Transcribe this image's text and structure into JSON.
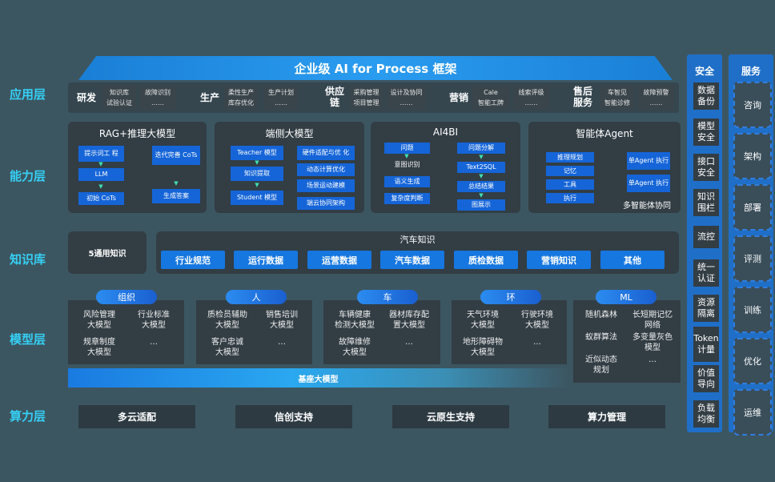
{
  "title": "企业级 AI for Process 框架",
  "layers": {
    "app": "应用层",
    "cap": "能力层",
    "kb": "知识库",
    "model": "模型层",
    "compute": "算力层"
  },
  "app": [
    {
      "name": "研发",
      "items": [
        "知识库\n试验认证",
        "故障识别\n……"
      ]
    },
    {
      "name": "生产",
      "items": [
        "柔性生产\n库存优化",
        "生产计划\n……"
      ]
    },
    {
      "name": "供应\n链",
      "items": [
        "采购管理\n项目管理",
        "设计及协同\n……"
      ]
    },
    {
      "name": "营销",
      "items": [
        "Cale\n智能工牌",
        "线索评级\n……"
      ]
    },
    {
      "name": "售后\n服务",
      "items": [
        "车智见\n智能诊修",
        "故障预警\n……"
      ]
    }
  ],
  "cap": {
    "rag": {
      "title": "RAG+推理大模型",
      "items": [
        "提示词工\n程",
        "LLM",
        "初始 CoTs",
        "迭代完善\nCoTs",
        "生成答案"
      ]
    },
    "edge": {
      "title": "端侧大模型",
      "items": [
        "Teacher 模型",
        "知识提取",
        "Student 模型",
        "硬件适配与优\n化",
        "动态计算优化",
        "场景运动建模",
        "端云协同架构"
      ]
    },
    "bi": {
      "title": "AI4BI",
      "items": [
        "问题",
        "意图识别",
        "语义生成",
        "复杂度判断",
        "问题分解",
        "Text2SQL",
        "总结结果",
        "图展示"
      ]
    },
    "agent": {
      "title": "智能体Agent",
      "items": [
        "推理规划",
        "记忆",
        "工具",
        "执行",
        "单Agent\n执行",
        "单Agent\n执行"
      ],
      "footer": "多智能体协同"
    }
  },
  "kb": {
    "general": "5通用知识",
    "auto_title": "汽车知识",
    "auto": [
      "行业规范",
      "运行数据",
      "运营数据",
      "汽车数据",
      "质检数据",
      "营销知识",
      "其他"
    ]
  },
  "model": {
    "groups": [
      {
        "name": "组织",
        "items": [
          "风险管理\n大模型",
          "行业标准\n大模型",
          "规章制度\n大模型",
          "…"
        ]
      },
      {
        "name": "人",
        "items": [
          "质检员辅助\n大模型",
          "销售培训\n大模型",
          "客户忠诚\n大模型",
          "…"
        ]
      },
      {
        "name": "车",
        "items": [
          "车辆健康\n检测大模型",
          "器材库存配\n置大模型",
          "故障维修\n大模型",
          "…"
        ]
      },
      {
        "name": "环",
        "items": [
          "天气环境\n大模型",
          "行驶环境\n大模型",
          "地形障碍物\n大模型",
          "…"
        ]
      },
      {
        "name": "ML",
        "items": [
          "随机森林",
          "长短期记忆\n网络",
          "蚁群算法",
          "多变量灰色\n模型",
          "近似动态\n规划",
          "…"
        ]
      }
    ],
    "base": "基座大模型"
  },
  "compute": [
    "多云适配",
    "信创支持",
    "云原生支持",
    "算力管理"
  ],
  "security": {
    "title": "安全",
    "items": [
      "数据\n备份",
      "模型\n安全",
      "接口\n安全",
      "知识\n围栏",
      "流控",
      "统一\n认证",
      "资源\n隔离",
      "Token\n计量",
      "价值\n导向",
      "负载\n均衡"
    ]
  },
  "service": {
    "title": "服务",
    "items": [
      "咨询",
      "架构",
      "部署",
      "评测",
      "训练",
      "优化",
      "运维"
    ]
  }
}
